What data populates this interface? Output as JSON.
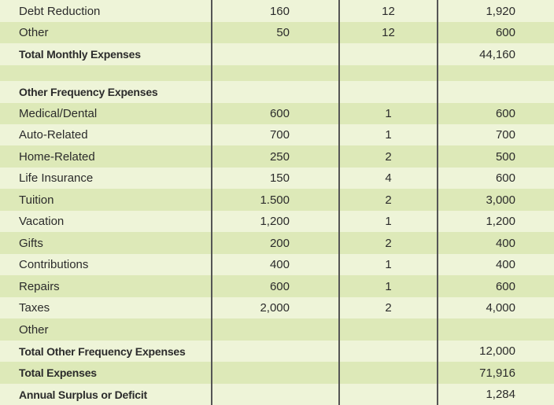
{
  "rows": [
    {
      "label": "Debt Reduction",
      "amount": "160",
      "freq": "12",
      "total": "1,920"
    },
    {
      "label": "Other",
      "amount": "50",
      "freq": "12",
      "total": "600"
    },
    {
      "label": "Total Monthly Expenses",
      "amount": "",
      "freq": "",
      "total": "44,160"
    },
    {
      "label": "",
      "amount": "",
      "freq": "",
      "total": ""
    },
    {
      "label": "Other Frequency Expenses",
      "amount": "",
      "freq": "",
      "total": ""
    },
    {
      "label": "Medical/Dental",
      "amount": "600",
      "freq": "1",
      "total": "600"
    },
    {
      "label": "Auto-Related",
      "amount": "700",
      "freq": "1",
      "total": "700"
    },
    {
      "label": "Home-Related",
      "amount": "250",
      "freq": "2",
      "total": "500"
    },
    {
      "label": "Life Insurance",
      "amount": "150",
      "freq": "4",
      "total": "600"
    },
    {
      "label": "Tuition",
      "amount": "1.500",
      "freq": "2",
      "total": "3,000"
    },
    {
      "label": "Vacation",
      "amount": "1,200",
      "freq": "1",
      "total": "1,200"
    },
    {
      "label": "Gifts",
      "amount": "200",
      "freq": "2",
      "total": "400"
    },
    {
      "label": "Contributions",
      "amount": "400",
      "freq": "1",
      "total": "400"
    },
    {
      "label": "Repairs",
      "amount": "600",
      "freq": "1",
      "total": "600"
    },
    {
      "label": "Taxes",
      "amount": "2,000",
      "freq": "2",
      "total": "4,000"
    },
    {
      "label": "Other",
      "amount": "",
      "freq": "",
      "total": ""
    },
    {
      "label": "Total Other Frequency Expenses",
      "amount": "",
      "freq": "",
      "total": "12,000"
    },
    {
      "label": "Total Expenses",
      "amount": "",
      "freq": "",
      "total": "71,916"
    },
    {
      "label": "Annual Surplus or Deficit",
      "amount": "",
      "freq": "",
      "total": "1,284"
    }
  ],
  "colors": {
    "row_light": "#eef4d8",
    "row_dark": "#dde9b8",
    "rule": "#555555"
  }
}
